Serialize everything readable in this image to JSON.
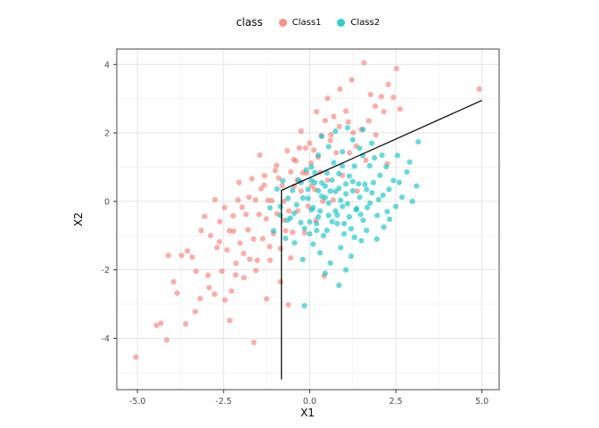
{
  "panel": {
    "background": "#FFFFFF",
    "grid_major_color": "#E3E3E3",
    "grid_minor_color": "#F1F1F1",
    "border_color": "#474747",
    "tick_color": "#333333"
  },
  "legend": {
    "title": "class",
    "entries": [
      {
        "label": "Class1",
        "color": "#F8766D"
      },
      {
        "label": "Class2",
        "color": "#00BFC4"
      }
    ]
  },
  "chart_data": {
    "type": "scatter",
    "title": "",
    "xlabel": "X1",
    "ylabel": "X2",
    "legend_position": "top",
    "grid": true,
    "point_alpha": 0.6,
    "xlim": [
      -5.6,
      5.5
    ],
    "ylim": [
      -5.5,
      4.45
    ],
    "x_ticks": [
      {
        "value": -5.0,
        "label": "-5.0"
      },
      {
        "value": -2.5,
        "label": "-2.5"
      },
      {
        "value": 0.0,
        "label": "0.0"
      },
      {
        "value": 2.5,
        "label": "2.5"
      },
      {
        "value": 5.0,
        "label": "5.0"
      }
    ],
    "y_ticks": [
      {
        "value": -4,
        "label": "-4"
      },
      {
        "value": -2,
        "label": "-2"
      },
      {
        "value": 0,
        "label": "0"
      },
      {
        "value": 2,
        "label": "2"
      },
      {
        "value": 4,
        "label": "4"
      }
    ],
    "decision_boundary": {
      "color": "#000000",
      "points": [
        [
          -0.82,
          -5.2
        ],
        [
          -0.82,
          0.32
        ],
        [
          5.0,
          2.95
        ]
      ]
    },
    "series": [
      {
        "name": "Class1",
        "color": "#F8766D",
        "points": [
          [
            -5.05,
            -4.55
          ],
          [
            -4.32,
            -3.56
          ],
          [
            -4.1,
            -1.58
          ],
          [
            -3.85,
            -2.68
          ],
          [
            -3.72,
            -1.58
          ],
          [
            -3.6,
            -3.58
          ],
          [
            -3.41,
            -1.63
          ],
          [
            -3.3,
            -2.04
          ],
          [
            -3.18,
            -2.84
          ],
          [
            -3.05,
            -0.44
          ],
          [
            -2.95,
            -2.16
          ],
          [
            -2.88,
            -1.0
          ],
          [
            -2.76,
            -2.71
          ],
          [
            -2.69,
            -1.35
          ],
          [
            -2.61,
            -0.59
          ],
          [
            -2.55,
            -2.04
          ],
          [
            -2.47,
            -0.18
          ],
          [
            -2.4,
            -1.42
          ],
          [
            -2.33,
            -0.86
          ],
          [
            -2.27,
            -2.62
          ],
          [
            -2.21,
            -0.87
          ],
          [
            -2.14,
            -1.81
          ],
          [
            -2.08,
            0.04
          ],
          [
            -2.02,
            -1.22
          ],
          [
            -1.96,
            -0.17
          ],
          [
            -1.91,
            -2.23
          ],
          [
            -1.85,
            -0.38
          ],
          [
            -1.79,
            -0.83
          ],
          [
            -1.74,
            -1.69
          ],
          [
            -1.68,
            0.66
          ],
          [
            -1.63,
            -1.1
          ],
          [
            -1.57,
            0.04
          ],
          [
            -1.52,
            -1.72
          ],
          [
            -1.47,
            -0.38
          ],
          [
            -1.41,
            0.37
          ],
          [
            -1.36,
            -1.09
          ],
          [
            -1.31,
            0.75
          ],
          [
            -1.26,
            -0.51
          ],
          [
            -1.21,
            0.03
          ],
          [
            -1.15,
            -1.72
          ],
          [
            -1.1,
            0.02
          ],
          [
            -1.05,
            -0.94
          ],
          [
            -1.0,
            0.9
          ],
          [
            -0.95,
            -0.36
          ],
          [
            -0.9,
            0.68
          ],
          [
            -0.85,
            -1.38
          ],
          [
            -0.8,
            0.46
          ],
          [
            -0.75,
            0.0
          ],
          [
            -0.7,
            -0.86
          ],
          [
            -0.65,
            1.48
          ],
          [
            -0.6,
            -0.28
          ],
          [
            -0.55,
            0.86
          ],
          [
            -0.5,
            -0.9
          ],
          [
            -0.45,
            0.44
          ],
          [
            -0.4,
            1.18
          ],
          [
            -0.35,
            -0.28
          ],
          [
            -0.3,
            1.56
          ],
          [
            -0.25,
            0.3
          ],
          [
            -0.2,
            0.84
          ],
          [
            -0.15,
            -0.92
          ],
          [
            -0.1,
            0.82
          ],
          [
            -0.05,
            -0.14
          ],
          [
            0.0,
            1.7
          ],
          [
            0.06,
            0.45
          ],
          [
            0.12,
            1.5
          ],
          [
            0.18,
            -0.56
          ],
          [
            0.24,
            1.29
          ],
          [
            0.31,
            0.85
          ],
          [
            0.38,
            0.0
          ],
          [
            0.45,
            2.36
          ],
          [
            0.52,
            0.62
          ],
          [
            0.6,
            1.78
          ],
          [
            0.68,
            0.04
          ],
          [
            0.77,
            1.42
          ],
          [
            0.86,
            2.19
          ],
          [
            0.95,
            0.76
          ],
          [
            1.05,
            2.64
          ],
          [
            1.15,
            1.42
          ],
          [
            1.26,
            2.01
          ],
          [
            1.38,
            0.3
          ],
          [
            1.5,
            2.1
          ],
          [
            1.63,
            1.2
          ],
          [
            1.77,
            3.12
          ],
          [
            1.92,
            1.94
          ],
          [
            2.08,
            3.06
          ],
          [
            2.25,
            1.1
          ],
          [
            2.43,
            3.04
          ],
          [
            2.62,
            2.7
          ],
          [
            0.2,
            2.62
          ],
          [
            0.52,
            3.01
          ],
          [
            0.88,
            3.28
          ],
          [
            1.22,
            3.55
          ],
          [
            1.58,
            4.05
          ],
          [
            2.28,
            3.42
          ],
          [
            2.52,
            3.88
          ],
          [
            1.9,
            2.78
          ],
          [
            1.12,
            2.32
          ],
          [
            0.7,
            2.48
          ],
          [
            0.34,
            1.92
          ],
          [
            -0.12,
            1.56
          ],
          [
            -0.46,
            1.22
          ],
          [
            -0.96,
            1.05
          ],
          [
            -1.32,
            0.48
          ],
          [
            -1.76,
            0.12
          ],
          [
            -2.22,
            -0.42
          ],
          [
            -2.62,
            -1.18
          ],
          [
            -2.92,
            -2.52
          ],
          [
            -3.32,
            -3.22
          ],
          [
            -2.46,
            -2.88
          ],
          [
            -1.92,
            -1.52
          ],
          [
            -1.56,
            -2.02
          ],
          [
            -1.16,
            -1.32
          ],
          [
            -0.76,
            -0.55
          ],
          [
            -0.36,
            0.62
          ],
          [
            0.04,
            1.12
          ],
          [
            4.92,
            3.28
          ],
          [
            -1.62,
            -4.12
          ],
          [
            -2.32,
            -3.48
          ],
          [
            -0.62,
            -3.02
          ],
          [
            0.42,
            -2.18
          ],
          [
            -3.95,
            -2.35
          ],
          [
            -4.45,
            -3.62
          ],
          [
            -3.55,
            -1.45
          ],
          [
            -2.05,
            0.55
          ],
          [
            -1.45,
            1.35
          ],
          [
            -0.25,
            2.05
          ],
          [
            0.62,
            1.95
          ],
          [
            1.35,
            1.62
          ],
          [
            1.72,
            2.35
          ],
          [
            2.15,
            2.62
          ],
          [
            -0.85,
            -2.35
          ],
          [
            -1.25,
            -2.85
          ],
          [
            -2.15,
            -2.15
          ],
          [
            0.15,
            0.35
          ],
          [
            -0.55,
            -1.65
          ],
          [
            -3.15,
            -0.85
          ],
          [
            -2.75,
            0.05
          ],
          [
            -4.15,
            -4.05
          ]
        ]
      },
      {
        "name": "Class2",
        "color": "#00BFC4",
        "points": [
          [
            -1.15,
            -0.19
          ],
          [
            -1.05,
            -0.86
          ],
          [
            -0.95,
            0.36
          ],
          [
            -0.85,
            -0.41
          ],
          [
            -0.78,
            0.6
          ],
          [
            -0.7,
            -1.08
          ],
          [
            -0.63,
            0.09
          ],
          [
            -0.56,
            -0.49
          ],
          [
            -0.5,
            0.32
          ],
          [
            -0.44,
            -1.21
          ],
          [
            -0.38,
            -0.1
          ],
          [
            -0.32,
            0.62
          ],
          [
            -0.26,
            -0.62
          ],
          [
            -0.2,
            0.1
          ],
          [
            -0.15,
            -0.79
          ],
          [
            -0.1,
            0.92
          ],
          [
            -0.05,
            0.09
          ],
          [
            0.0,
            -0.6
          ],
          [
            0.05,
            0.61
          ],
          [
            0.1,
            -0.18
          ],
          [
            0.15,
            0.84
          ],
          [
            0.2,
            -0.85
          ],
          [
            0.25,
            0.31
          ],
          [
            0.3,
            -0.28
          ],
          [
            0.35,
            0.54
          ],
          [
            0.4,
            -1.0
          ],
          [
            0.45,
            0.11
          ],
          [
            0.5,
            0.83
          ],
          [
            0.55,
            -0.41
          ],
          [
            0.6,
            0.3
          ],
          [
            0.65,
            -0.59
          ],
          [
            0.7,
            1.13
          ],
          [
            0.75,
            0.29
          ],
          [
            0.8,
            -0.4
          ],
          [
            0.85,
            0.81
          ],
          [
            0.9,
            0.03
          ],
          [
            0.95,
            1.04
          ],
          [
            1.0,
            -0.65
          ],
          [
            1.05,
            0.51
          ],
          [
            1.1,
            -0.07
          ],
          [
            1.15,
            0.74
          ],
          [
            1.2,
            -0.8
          ],
          [
            1.25,
            0.31
          ],
          [
            1.3,
            1.03
          ],
          [
            1.36,
            -0.21
          ],
          [
            1.42,
            0.51
          ],
          [
            1.48,
            -0.38
          ],
          [
            1.54,
            1.34
          ],
          [
            1.6,
            0.5
          ],
          [
            1.67,
            -0.18
          ],
          [
            1.74,
            1.04
          ],
          [
            1.81,
            0.25
          ],
          [
            1.88,
            1.27
          ],
          [
            1.96,
            -0.41
          ],
          [
            2.04,
            0.76
          ],
          [
            2.13,
            0.18
          ],
          [
            2.22,
            1.01
          ],
          [
            2.32,
            -0.52
          ],
          [
            2.43,
            0.61
          ],
          [
            2.55,
            1.34
          ],
          [
            2.68,
            0.12
          ],
          [
            2.82,
            0.86
          ],
          [
            2.98,
            0.0
          ],
          [
            3.15,
            1.74
          ],
          [
            0.3,
            -1.5
          ],
          [
            0.6,
            -1.8
          ],
          [
            0.9,
            -1.35
          ],
          [
            1.2,
            -1.6
          ],
          [
            1.5,
            -1.15
          ],
          [
            0.1,
            -1.25
          ],
          [
            -0.2,
            -1.7
          ],
          [
            0.45,
            -2.1
          ],
          [
            0.85,
            -2.45
          ],
          [
            1.05,
            -2.0
          ],
          [
            -0.15,
            -3.05
          ],
          [
            1.65,
            -0.85
          ],
          [
            1.95,
            -1.1
          ],
          [
            2.25,
            -0.3
          ],
          [
            0.25,
            1.35
          ],
          [
            0.55,
            1.6
          ],
          [
            0.95,
            1.45
          ],
          [
            1.25,
            1.8
          ],
          [
            1.55,
            2.1
          ],
          [
            0.05,
            1.0
          ],
          [
            0.35,
            1.9
          ],
          [
            0.75,
            2.05
          ],
          [
            1.1,
            2.15
          ],
          [
            1.45,
            1.55
          ],
          [
            1.8,
            1.7
          ],
          [
            2.1,
            1.35
          ],
          [
            0.15,
            0.55
          ],
          [
            0.45,
            0.45
          ],
          [
            0.65,
            0.62
          ],
          [
            0.85,
            0.38
          ],
          [
            1.05,
            0.22
          ],
          [
            1.25,
            0.58
          ],
          [
            0.95,
            -0.15
          ],
          [
            0.75,
            -0.28
          ],
          [
            0.55,
            -0.05
          ],
          [
            0.35,
            0.15
          ],
          [
            1.45,
            0.12
          ],
          [
            1.65,
            0.35
          ],
          [
            1.85,
            0.55
          ],
          [
            0.25,
            -0.45
          ],
          [
            0.05,
            -0.25
          ],
          [
            -0.05,
            0.35
          ],
          [
            -0.25,
            0.55
          ],
          [
            -0.45,
            -0.35
          ],
          [
            -0.65,
            -0.55
          ],
          [
            -0.85,
            -0.15
          ],
          [
            1.15,
            -0.45
          ],
          [
            1.35,
            -0.25
          ],
          [
            1.55,
            -0.55
          ],
          [
            1.75,
            -0.05
          ],
          [
            2.0,
            0.05
          ],
          [
            2.3,
            0.35
          ],
          [
            2.6,
            0.55
          ],
          [
            2.9,
            1.15
          ],
          [
            3.1,
            0.45
          ],
          [
            0.0,
            -0.95
          ],
          [
            0.2,
            -0.65
          ],
          [
            0.5,
            -0.85
          ],
          [
            0.8,
            -0.65
          ],
          [
            1.0,
            -0.95
          ],
          [
            1.3,
            -1.05
          ],
          [
            2.15,
            -0.75
          ],
          [
            2.5,
            -0.15
          ]
        ]
      }
    ]
  }
}
